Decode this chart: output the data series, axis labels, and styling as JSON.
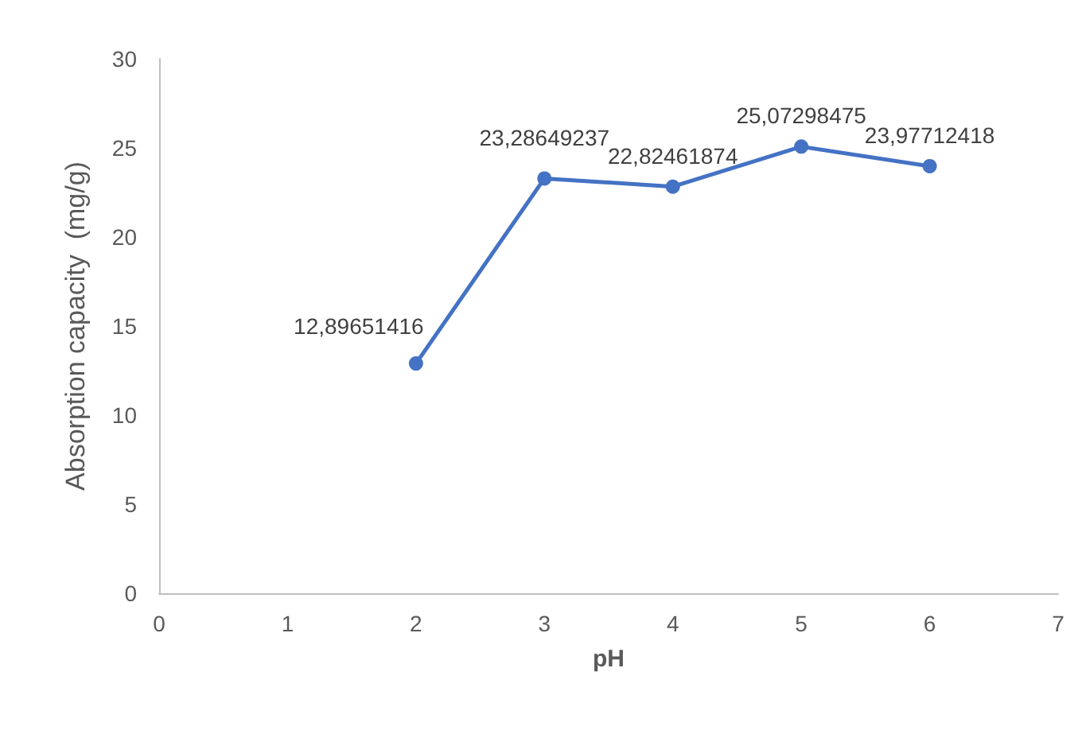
{
  "chart_data": {
    "type": "line",
    "xlabel": "pH",
    "ylabel": "Absorption capacity  (mg/g)",
    "x": [
      2,
      3,
      4,
      5,
      6
    ],
    "series": [
      {
        "color": "#4472c4",
        "values": [
          12.89651416,
          23.28649237,
          22.82461874,
          25.07298475,
          23.97712418
        ],
        "value_labels": [
          "12,89651416",
          "23,28649237",
          "22,82461874",
          "25,07298475",
          "23,97712418"
        ]
      }
    ],
    "xlim": [
      0,
      7
    ],
    "xticks": [
      0,
      1,
      2,
      3,
      4,
      5,
      6,
      7
    ],
    "ylim": [
      0,
      30
    ],
    "yticks": [
      0,
      5,
      10,
      15,
      20,
      25,
      30
    ],
    "marker": "circle",
    "line_style": "solid"
  }
}
